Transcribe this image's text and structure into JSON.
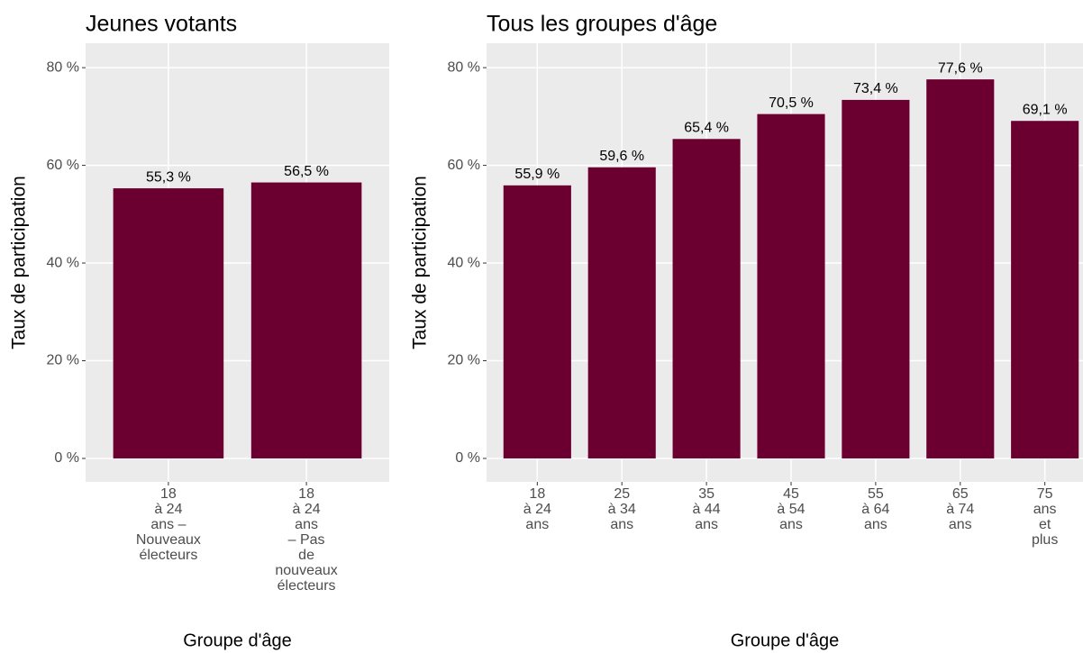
{
  "chart_data": [
    {
      "type": "bar",
      "title": "Jeunes votants",
      "xlabel": "Groupe d'âge",
      "ylabel": "Taux de participation",
      "categories": [
        "18\nà 24\nans –\nNouveaux\nélecteurs",
        "18\nà 24\nans\n– Pas\nde\nnouveaux\nélecteurs"
      ],
      "values": [
        55.3,
        56.5
      ],
      "value_labels": [
        "55,3 %",
        "56,5 %"
      ],
      "color": "#6b0030",
      "ylim": [
        -4.8,
        85
      ],
      "yticks": [
        {
          "value": 0,
          "label": "0 %"
        },
        {
          "value": 20,
          "label": "20 %"
        },
        {
          "value": 40,
          "label": "40 %"
        },
        {
          "value": 60,
          "label": "60 %"
        },
        {
          "value": 80,
          "label": "80 %"
        }
      ],
      "grid": true
    },
    {
      "type": "bar",
      "title": "Tous les groupes d'âge",
      "xlabel": "Groupe d'âge",
      "ylabel": "Taux de participation",
      "categories": [
        "18\nà 24\nans",
        "25\nà 34\nans",
        "35\nà 44\nans",
        "45\nà 54\nans",
        "55\nà 64\nans",
        "65\nà 74\nans",
        "75\nans\net\nplus"
      ],
      "values": [
        55.9,
        59.6,
        65.4,
        70.5,
        73.4,
        77.6,
        69.1
      ],
      "value_labels": [
        "55,9 %",
        "59,6 %",
        "65,4 %",
        "70,5 %",
        "73,4 %",
        "77,6 %",
        "69,1 %"
      ],
      "color": "#6b0030",
      "ylim": [
        -4.8,
        85
      ],
      "yticks": [
        {
          "value": 0,
          "label": "0 %"
        },
        {
          "value": 20,
          "label": "20 %"
        },
        {
          "value": 40,
          "label": "40 %"
        },
        {
          "value": 60,
          "label": "60 %"
        },
        {
          "value": 80,
          "label": "80 %"
        }
      ],
      "grid": true
    }
  ]
}
